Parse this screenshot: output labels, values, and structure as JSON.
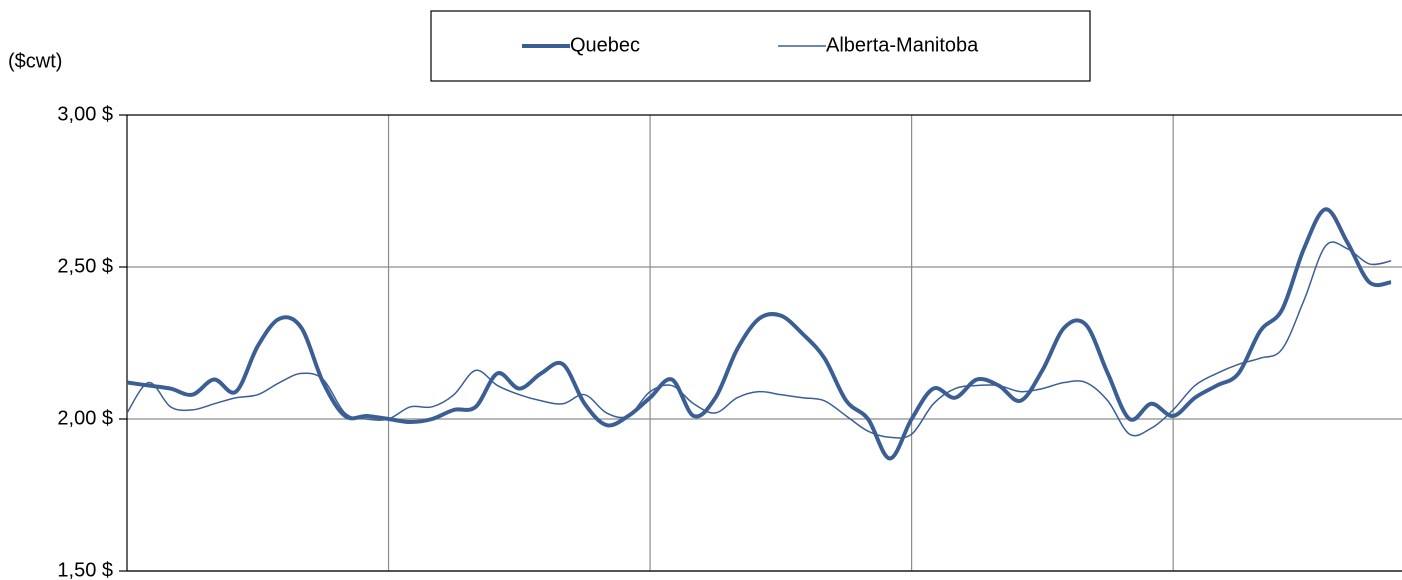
{
  "chart_data": {
    "type": "line",
    "smooth": true,
    "y_label": "($cwt)",
    "categories": [
      null,
      null,
      null,
      null,
      null,
      null,
      null,
      null,
      null,
      null,
      null,
      null,
      null,
      null,
      null,
      null,
      null,
      null,
      null,
      null,
      null,
      null,
      null,
      null,
      null,
      null,
      null,
      null,
      null,
      null,
      null,
      null,
      null,
      null,
      null,
      null,
      null,
      null,
      null,
      null,
      null,
      null,
      null,
      null,
      null,
      null,
      null,
      null,
      null,
      null,
      null,
      null,
      null,
      null,
      null,
      null,
      null,
      null,
      null
    ],
    "series": [
      {
        "name": "Quebec",
        "color": "#3b5f95",
        "width": 4,
        "values": [
          2.12,
          2.11,
          2.1,
          2.08,
          2.13,
          2.09,
          2.24,
          2.33,
          2.3,
          2.12,
          2.01,
          2.01,
          2.0,
          1.99,
          2.0,
          2.03,
          2.04,
          2.15,
          2.1,
          2.15,
          2.18,
          2.05,
          1.98,
          2.01,
          2.07,
          2.13,
          2.01,
          2.07,
          2.23,
          2.33,
          2.34,
          2.28,
          2.2,
          2.06,
          2.0,
          1.87,
          2.0,
          2.1,
          2.07,
          2.13,
          2.11,
          2.06,
          2.16,
          2.3,
          2.31,
          2.15,
          2.0,
          2.05,
          2.01,
          2.07,
          2.11,
          2.15,
          2.29,
          2.36,
          2.56,
          2.69,
          2.58,
          2.45,
          2.45
        ]
      },
      {
        "name": "Alberta-Manitoba",
        "color": "#3b5f95",
        "width": 1.5,
        "values": [
          2.02,
          2.12,
          2.04,
          2.03,
          2.05,
          2.07,
          2.08,
          2.12,
          2.15,
          2.13,
          2.02,
          2.0,
          2.0,
          2.04,
          2.04,
          2.08,
          2.16,
          2.11,
          2.08,
          2.06,
          2.05,
          2.08,
          2.02,
          2.01,
          2.09,
          2.11,
          2.05,
          2.02,
          2.07,
          2.09,
          2.08,
          2.07,
          2.06,
          2.01,
          1.96,
          1.94,
          1.95,
          2.05,
          2.1,
          2.11,
          2.11,
          2.09,
          2.1,
          2.12,
          2.12,
          2.06,
          1.95,
          1.97,
          2.03,
          2.11,
          2.15,
          2.18,
          2.2,
          2.23,
          2.39,
          2.57,
          2.56,
          2.51,
          2.52
        ]
      }
    ],
    "ylim": [
      1.5,
      3
    ],
    "yticks": [
      {
        "value": 1.5,
        "label": "1,50 $"
      },
      {
        "value": 2,
        "label": "2,00 $"
      },
      {
        "value": 2.5,
        "label": "2,50 $"
      },
      {
        "value": 3,
        "label": "3,00 $"
      }
    ],
    "grid": true,
    "legend": "top"
  }
}
